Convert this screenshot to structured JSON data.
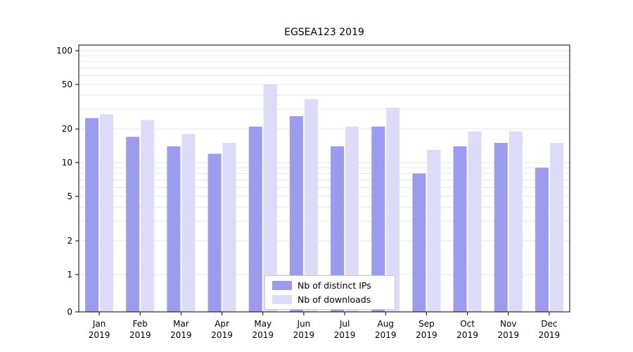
{
  "title": "EGSEA123 2019",
  "chart_data": {
    "type": "bar",
    "title": "EGSEA123 2019",
    "year": "2019",
    "categories": [
      "Jan",
      "Feb",
      "Mar",
      "Apr",
      "May",
      "Jun",
      "Jul",
      "Aug",
      "Sep",
      "Oct",
      "Nov",
      "Dec"
    ],
    "categories_full": [
      "Jan 2019",
      "Feb 2019",
      "Mar 2019",
      "Apr 2019",
      "May 2019",
      "Jun 2019",
      "Jul 2019",
      "Aug 2019",
      "Sep 2019",
      "Oct 2019",
      "Nov 2019",
      "Dec 2019"
    ],
    "series": [
      {
        "name": "Nb of distinct IPs",
        "color": "#9b9bef",
        "values": [
          25,
          17,
          14,
          12,
          21,
          26,
          14,
          21,
          8,
          14,
          15,
          9
        ]
      },
      {
        "name": "Nb of downloads",
        "color": "#dcdcf9",
        "values": [
          27,
          24,
          18,
          15,
          50,
          37,
          21,
          31,
          13,
          19,
          19,
          15
        ]
      }
    ],
    "yscale": "log (symlog, linear below 1)",
    "yticks": [
      0,
      1,
      2,
      5,
      10,
      20,
      50,
      100
    ],
    "ylim": [
      0,
      110
    ],
    "xlabel": "",
    "ylabel": "",
    "grid": "horizontal minor log gridlines",
    "gridline_color": "#e6e6e6",
    "legend_position": "lower center inside plot"
  }
}
